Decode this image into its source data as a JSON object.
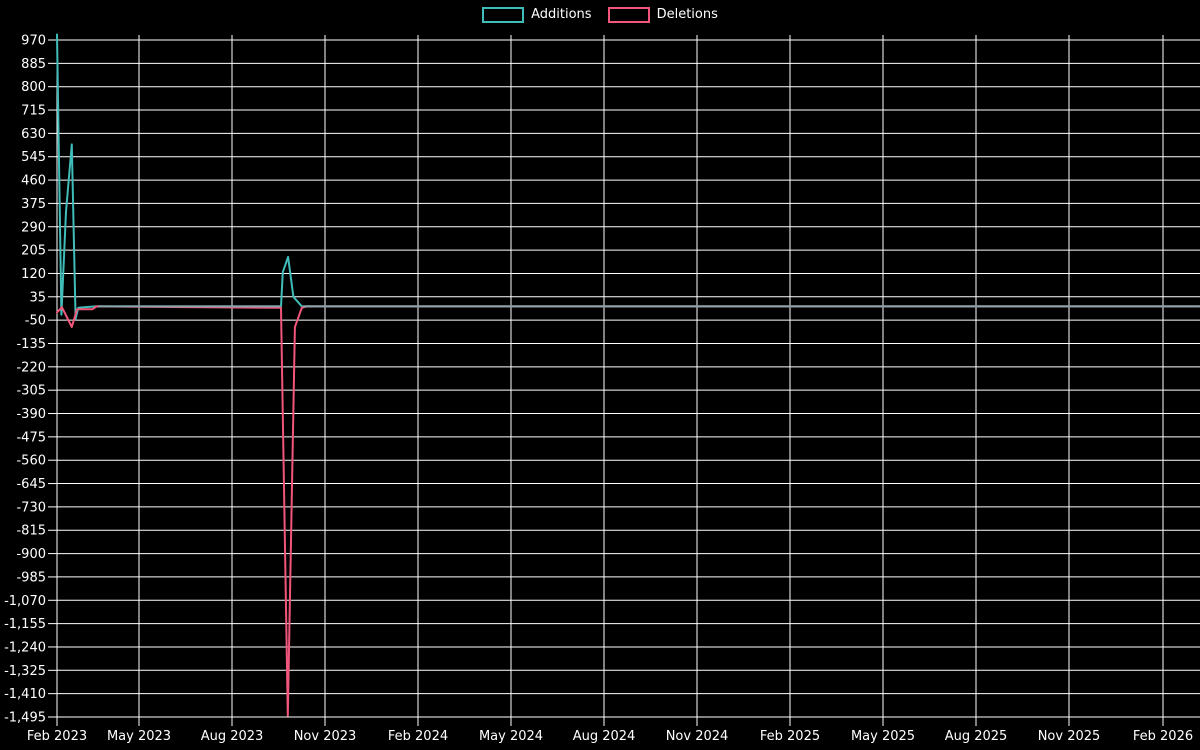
{
  "page": {
    "background": "#000000"
  },
  "chart_data": {
    "type": "line",
    "title": "",
    "xlabel": "",
    "ylabel": "",
    "grid": true,
    "legend_position": "top-center",
    "background_color": "#000000",
    "grid_color": "#ffffff",
    "text_color": "#ffffff",
    "ylim": [
      -1495,
      970
    ],
    "x_axis_note": "x values are months since Feb 2023; ticks every 3 months",
    "x_tick_labels": [
      "Feb 2023",
      "May 2023",
      "Aug 2023",
      "Nov 2023",
      "Feb 2024",
      "May 2024",
      "Aug 2024",
      "Nov 2024",
      "Feb 2025",
      "May 2025",
      "Aug 2025",
      "Nov 2025",
      "Feb 2026"
    ],
    "y_tick_values": [
      970,
      885,
      800,
      715,
      630,
      545,
      460,
      375,
      290,
      205,
      120,
      35,
      -50,
      -135,
      -220,
      -305,
      -390,
      -475,
      -560,
      -645,
      -730,
      -815,
      -900,
      -985,
      -1070,
      -1155,
      -1240,
      -1325,
      -1410,
      -1495
    ],
    "y_tick_labels": [
      "970",
      "885",
      "800",
      "715",
      "630",
      "545",
      "460",
      "375",
      "290",
      "205",
      "120",
      "35",
      "-50",
      "-135",
      "-220",
      "-305",
      "-390",
      "-475",
      "-560",
      "-645",
      "-730",
      "-815",
      "-900",
      "-985",
      "-1,070",
      "-1,155",
      "-1,240",
      "-1,325",
      "-1,410",
      "-1,495"
    ],
    "legend": [
      {
        "label": "Additions",
        "color": "#40bcb9"
      },
      {
        "label": "Deletions",
        "color": "#f2567b"
      }
    ],
    "series": [
      {
        "name": "Additions",
        "color": "#40bcb9",
        "points": [
          [
            0,
            990
          ],
          [
            0.16,
            -30
          ],
          [
            0.33,
            345
          ],
          [
            0.54,
            590
          ],
          [
            0.68,
            -45
          ],
          [
            0.78,
            -5
          ],
          [
            1.4,
            0
          ],
          [
            7.58,
            0
          ],
          [
            7.64,
            125
          ],
          [
            7.81,
            180
          ],
          [
            7.98,
            35
          ],
          [
            8.25,
            0
          ],
          [
            37.19,
            0
          ]
        ]
      },
      {
        "name": "Deletions",
        "color": "#f2567b",
        "points": [
          [
            0,
            -22
          ],
          [
            0.18,
            -3
          ],
          [
            0.54,
            -75
          ],
          [
            0.73,
            -10
          ],
          [
            1.3,
            -10
          ],
          [
            1.45,
            0
          ],
          [
            7.58,
            -5
          ],
          [
            7.8,
            -1490
          ],
          [
            8.03,
            -75
          ],
          [
            8.25,
            -5
          ],
          [
            8.4,
            0
          ],
          [
            37.19,
            0
          ]
        ]
      }
    ],
    "zero_overlap_segments": {
      "note": "where both series sit at zero they render as one muted line",
      "color": "#8ba5ab",
      "value": 0,
      "ranges": [
        [
          1.5,
          7.56
        ],
        [
          8.3,
          37.19
        ]
      ]
    }
  }
}
